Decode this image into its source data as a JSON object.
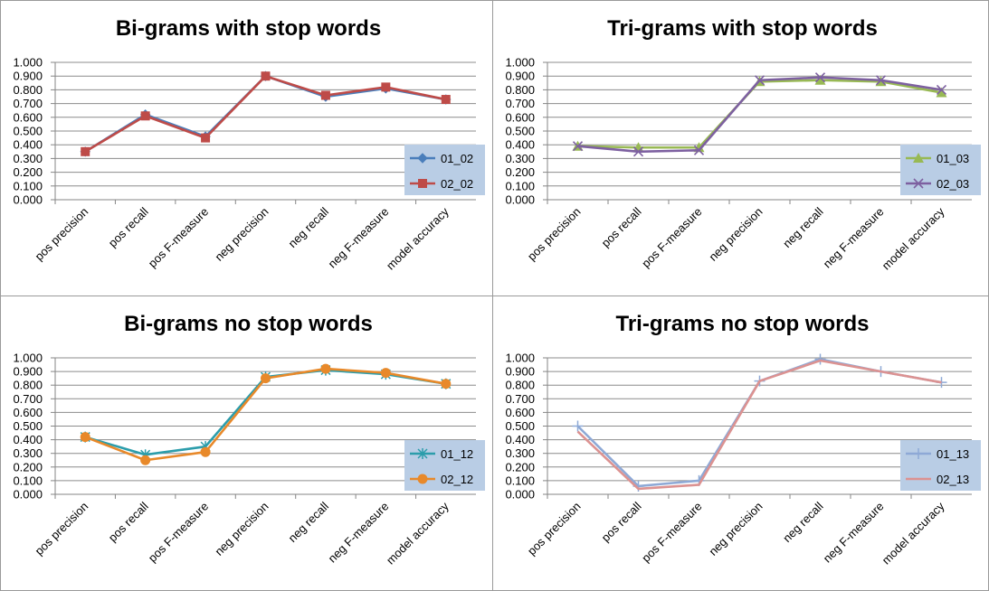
{
  "chart_data": [
    {
      "type": "line",
      "title": "Bi-grams with stop words",
      "categories": [
        "pos precision",
        "pos recall",
        "pos F-measure",
        "neg precision",
        "neg recall",
        "neg F-measure",
        "model accuracy"
      ],
      "ylim": [
        0,
        1
      ],
      "yticks": [
        "0.000",
        "0.100",
        "0.200",
        "0.300",
        "0.400",
        "0.500",
        "0.600",
        "0.700",
        "0.800",
        "0.900",
        "1.000"
      ],
      "grid": true,
      "legend_position": "right",
      "series": [
        {
          "name": "01_02",
          "color": "#4a7ebb",
          "marker": "diamond",
          "values": [
            0.35,
            0.62,
            0.46,
            0.9,
            0.75,
            0.81,
            0.73
          ]
        },
        {
          "name": "02_02",
          "color": "#be4b48",
          "marker": "square",
          "values": [
            0.35,
            0.61,
            0.45,
            0.9,
            0.76,
            0.82,
            0.73
          ]
        }
      ]
    },
    {
      "type": "line",
      "title": "Tri-grams with stop words",
      "categories": [
        "pos precision",
        "pos recall",
        "pos F-measure",
        "neg precision",
        "neg recall",
        "neg F-measure",
        "model accuracy"
      ],
      "ylim": [
        0,
        1
      ],
      "yticks": [
        "0.000",
        "0.100",
        "0.200",
        "0.300",
        "0.400",
        "0.500",
        "0.600",
        "0.700",
        "0.800",
        "0.900",
        "1.000"
      ],
      "grid": true,
      "legend_position": "right",
      "series": [
        {
          "name": "01_03",
          "color": "#98b954",
          "marker": "triangle",
          "values": [
            0.39,
            0.38,
            0.38,
            0.86,
            0.87,
            0.86,
            0.78
          ]
        },
        {
          "name": "02_03",
          "color": "#7d60a0",
          "marker": "x",
          "values": [
            0.39,
            0.35,
            0.36,
            0.87,
            0.89,
            0.87,
            0.8
          ]
        }
      ]
    },
    {
      "type": "line",
      "title": "Bi-grams no stop words",
      "categories": [
        "pos precision",
        "pos recall",
        "pos F-measure",
        "neg precision",
        "neg recall",
        "neg F-measure",
        "model accuracy"
      ],
      "ylim": [
        0,
        1
      ],
      "yticks": [
        "0.000",
        "0.100",
        "0.200",
        "0.300",
        "0.400",
        "0.500",
        "0.600",
        "0.700",
        "0.800",
        "0.900",
        "1.000"
      ],
      "grid": true,
      "legend_position": "right",
      "series": [
        {
          "name": "01_12",
          "color": "#2c9dab",
          "marker": "star",
          "values": [
            0.42,
            0.29,
            0.35,
            0.86,
            0.91,
            0.88,
            0.81
          ]
        },
        {
          "name": "02_12",
          "color": "#e8892a",
          "marker": "circle",
          "values": [
            0.42,
            0.25,
            0.31,
            0.85,
            0.92,
            0.89,
            0.81
          ]
        }
      ]
    },
    {
      "type": "line",
      "title": "Tri-grams no stop words",
      "categories": [
        "pos precision",
        "pos recall",
        "pos F-measure",
        "neg precision",
        "neg recall",
        "neg F-measure",
        "model accuracy"
      ],
      "ylim": [
        0,
        1
      ],
      "yticks": [
        "0.000",
        "0.100",
        "0.200",
        "0.300",
        "0.400",
        "0.500",
        "0.600",
        "0.700",
        "0.800",
        "0.900",
        "1.000"
      ],
      "grid": true,
      "legend_position": "right",
      "series": [
        {
          "name": "01_13",
          "color": "#8ea9d6",
          "marker": "plus",
          "values": [
            0.5,
            0.06,
            0.1,
            0.83,
            0.99,
            0.9,
            0.82
          ]
        },
        {
          "name": "02_13",
          "color": "#dc9291",
          "marker": "none",
          "values": [
            0.46,
            0.04,
            0.07,
            0.83,
            0.98,
            0.9,
            0.82
          ]
        }
      ]
    }
  ]
}
